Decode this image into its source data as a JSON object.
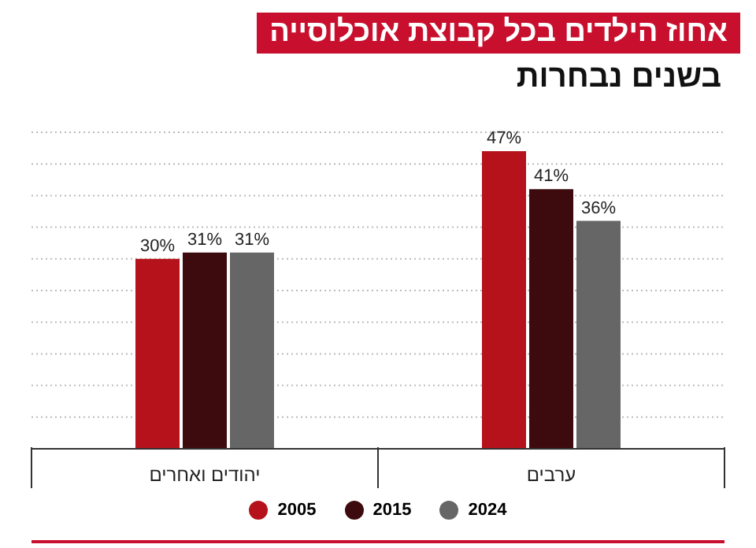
{
  "chart_data": {
    "type": "bar",
    "title": "אחוז הילדים בכל קבוצת אוכלוסייה",
    "subtitle": "בשנים נבחרות",
    "categories": [
      "יהודים ואחרים",
      "ערבים"
    ],
    "series": [
      {
        "name": "2005",
        "color": "#b5121b",
        "values": [
          30,
          47
        ],
        "value_labels": [
          "30%",
          "47%"
        ]
      },
      {
        "name": "2015",
        "color": "#3d0a0e",
        "values": [
          31,
          41
        ],
        "value_labels": [
          "31%",
          "41%"
        ]
      },
      {
        "name": "2024",
        "color": "#666666",
        "values": [
          31,
          36
        ],
        "value_labels": [
          "31%",
          "36%"
        ]
      }
    ],
    "ylim": [
      0,
      50
    ],
    "tick_labels": "x",
    "grid": "y",
    "legend": "bottom"
  }
}
